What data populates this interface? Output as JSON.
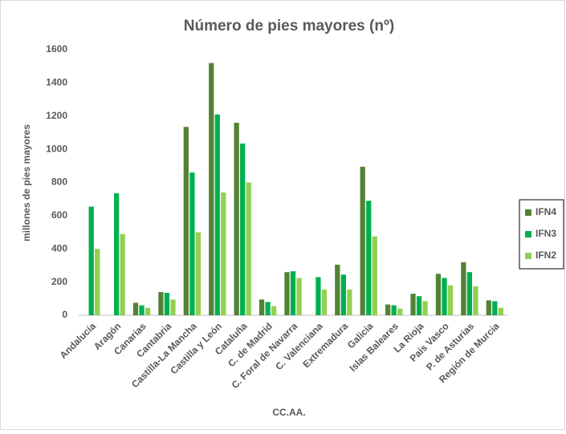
{
  "chart_data": {
    "type": "bar",
    "title": "Número de pies mayores (nº)",
    "x_label": "CC.AA.",
    "y_label": "millones de pies mayores",
    "categories": [
      "Andalucía",
      "Aragón",
      "Canarias",
      "Cantabria",
      "Castilla-La Mancha",
      "Castilla y León",
      "Cataluña",
      "C. de Madrid",
      "C. Foral de Navarra",
      "C. Valenciana",
      "Extremadura",
      "Galicia",
      "Islas Baleares",
      "La Rioja",
      "País Vasco",
      "P. de Asturias",
      "Región de Murcia"
    ],
    "series": [
      {
        "name": "IFN4",
        "color": "#548235",
        "values": [
          null,
          null,
          75,
          140,
          1135,
          1520,
          1160,
          95,
          260,
          null,
          305,
          895,
          65,
          130,
          250,
          320,
          90
        ]
      },
      {
        "name": "IFN3",
        "color": "#00b050",
        "values": [
          655,
          735,
          60,
          135,
          860,
          1210,
          1035,
          80,
          265,
          230,
          245,
          690,
          60,
          115,
          225,
          260,
          85
        ]
      },
      {
        "name": "IFN2",
        "color": "#92d050",
        "values": [
          400,
          490,
          45,
          95,
          500,
          740,
          800,
          55,
          225,
          155,
          155,
          475,
          40,
          85,
          180,
          175,
          45
        ]
      }
    ],
    "ylim": [
      0,
      1600
    ],
    "yticks": [
      0,
      200,
      400,
      600,
      800,
      1000,
      1200,
      1400,
      1600
    ],
    "grid": false,
    "legend": "right"
  }
}
